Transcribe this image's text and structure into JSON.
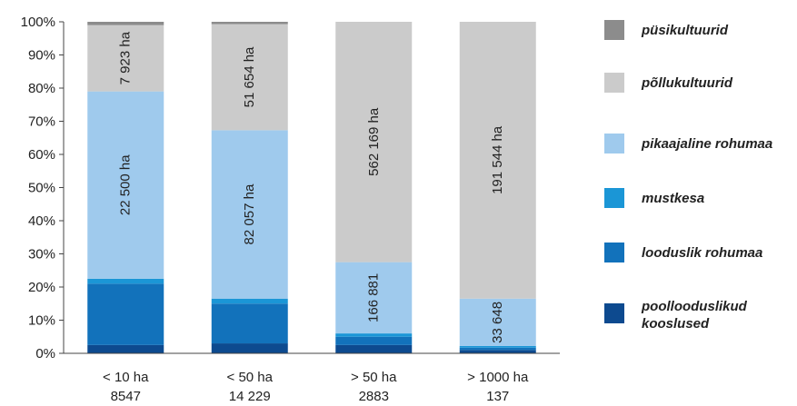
{
  "chart_data": {
    "type": "bar",
    "stacked": true,
    "title": "",
    "xlabel": "",
    "ylabel": "",
    "ylim": [
      0,
      100
    ],
    "y_tick_labels": [
      "0%",
      "10%",
      "20%",
      "30%",
      "40%",
      "50%",
      "60%",
      "70%",
      "80%",
      "90%",
      "100%"
    ],
    "categories": [
      {
        "line1": "< 10 ha",
        "line2": "8547"
      },
      {
        "line1": "< 50 ha",
        "line2": "14 229"
      },
      {
        "line1": "> 50 ha",
        "line2": "2883"
      },
      {
        "line1": "> 1000 ha",
        "line2": "137"
      }
    ],
    "series": [
      {
        "name": "poollooduslikud kooslused",
        "color": "#0d4a8f",
        "values": [
          2.5,
          3.0,
          2.5,
          1.0
        ]
      },
      {
        "name": "looduslik rohumaa",
        "color": "#1272bb",
        "values": [
          18.5,
          12.0,
          2.5,
          0.7
        ]
      },
      {
        "name": "mustkesa",
        "color": "#1b96d6",
        "values": [
          1.5,
          1.5,
          1.0,
          0.5
        ]
      },
      {
        "name": "pikaajaline rohumaa",
        "color": "#9fcaed",
        "values": [
          56.5,
          50.8,
          21.5,
          14.3
        ]
      },
      {
        "name": "põllukultuurid",
        "color": "#cbcbcb",
        "values": [
          20.0,
          32.0,
          72.5,
          83.5
        ]
      },
      {
        "name": "püsikultuurid",
        "color": "#8c8c8c",
        "values": [
          1.0,
          0.7,
          0.0,
          0.0
        ]
      }
    ],
    "legend_order": [
      "püsikultuurid",
      "põllukultuurid",
      "pikaajaline rohumaa",
      "mustkesa",
      "looduslik rohumaa",
      "poollooduslikud kooslused"
    ],
    "legend_placement": "right",
    "grid": false,
    "data_labels": [
      {
        "category": 0,
        "series": "põllukultuurid",
        "text": "7 923 ha"
      },
      {
        "category": 0,
        "series": "pikaajaline rohumaa",
        "text": "22 500 ha"
      },
      {
        "category": 1,
        "series": "põllukultuurid",
        "text": "51 654 ha"
      },
      {
        "category": 1,
        "series": "pikaajaline rohumaa",
        "text": "82 057 ha"
      },
      {
        "category": 2,
        "series": "põllukultuurid",
        "text": "562 169 ha"
      },
      {
        "category": 2,
        "series": "pikaajaline rohumaa",
        "text": "166 881"
      },
      {
        "category": 3,
        "series": "põllukultuurid",
        "text": "191 544 ha"
      },
      {
        "category": 3,
        "series": "pikaajaline rohumaa",
        "text": "33 648"
      }
    ]
  }
}
